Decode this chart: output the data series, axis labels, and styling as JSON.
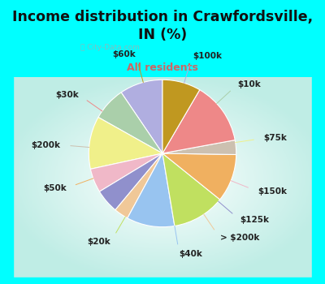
{
  "title": "Income distribution in Crawfordsville,\nIN (%)",
  "subtitle": "All residents",
  "title_color": "#111111",
  "subtitle_color": "#cc6666",
  "bg_top": "#00FFFF",
  "watermark": "City-Data.com",
  "slices": [
    {
      "label": "$100k",
      "value": 9,
      "color": "#b0aee0"
    },
    {
      "label": "$10k",
      "value": 7,
      "color": "#aacfaa"
    },
    {
      "label": "$75k",
      "value": 11,
      "color": "#f0f08a"
    },
    {
      "label": "$150k",
      "value": 5,
      "color": "#f0b8c8"
    },
    {
      "label": "$125k",
      "value": 5,
      "color": "#9090cc"
    },
    {
      "label": "> $200k",
      "value": 3,
      "color": "#f0c898"
    },
    {
      "label": "$40k",
      "value": 10,
      "color": "#98c4f0"
    },
    {
      "label": "$20k",
      "value": 11,
      "color": "#c0e060"
    },
    {
      "label": "$50k",
      "value": 10,
      "color": "#f0b060"
    },
    {
      "label": "$200k",
      "value": 3,
      "color": "#ccc0b0"
    },
    {
      "label": "$30k",
      "value": 13,
      "color": "#ee8888"
    },
    {
      "label": "$60k",
      "value": 8,
      "color": "#c09820"
    }
  ],
  "label_fontsize": 7.5,
  "title_fontsize": 12.5
}
